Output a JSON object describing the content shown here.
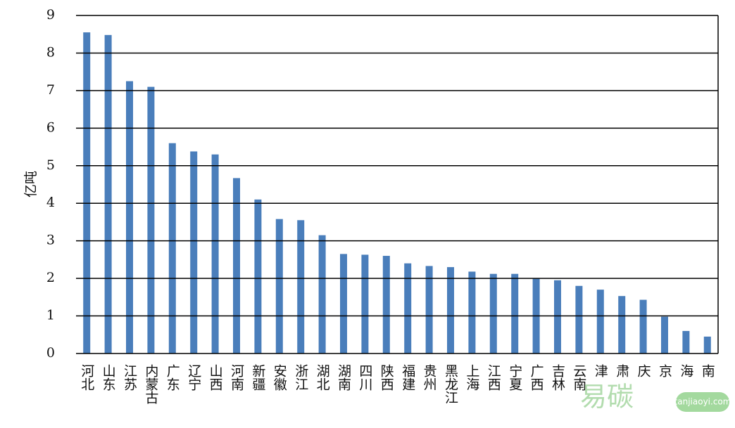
{
  "chart_data": {
    "type": "bar",
    "y_label": "亿吨",
    "categories": [
      "河北",
      "山东",
      "江苏",
      "内蒙古",
      "广东",
      "辽宁",
      "山西",
      "河南",
      "新疆",
      "安徽",
      "浙江",
      "湖北",
      "湖南",
      "四川",
      "陕西",
      "福建",
      "贵州",
      "黑龙江",
      "上海",
      "江西",
      "宁夏",
      "广西",
      "吉林",
      "云南",
      "津",
      "肃",
      "庆",
      "京",
      "海",
      "南"
    ],
    "values": [
      8.55,
      8.48,
      7.25,
      7.1,
      5.6,
      5.38,
      5.3,
      4.67,
      4.1,
      3.58,
      3.55,
      3.15,
      2.65,
      2.63,
      2.6,
      2.4,
      2.33,
      2.3,
      2.18,
      2.12,
      2.12,
      2.0,
      1.95,
      1.8,
      1.7,
      1.53,
      1.43,
      0.98,
      0.6,
      0.45
    ],
    "color": "#4a7ebb",
    "ylim": [
      0,
      9
    ],
    "yticks": [
      0,
      1,
      2,
      3,
      4,
      5,
      6,
      7,
      8,
      9
    ],
    "grid": true
  },
  "watermark": {
    "text": "易碳",
    "site": "tanjiaoyi.com"
  }
}
